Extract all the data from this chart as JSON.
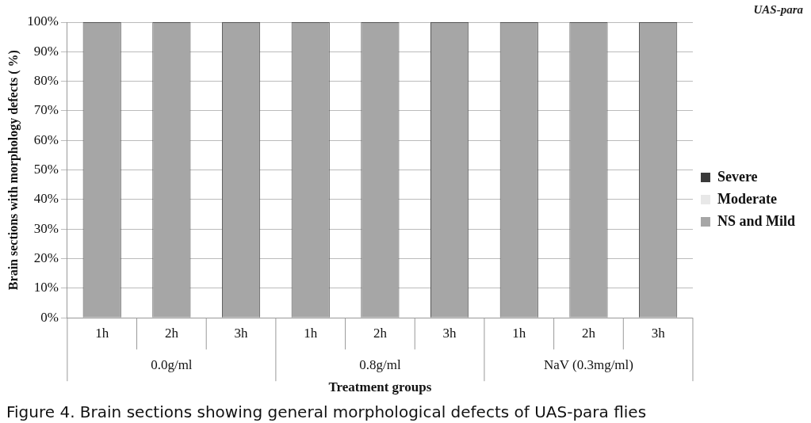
{
  "chart_data": {
    "type": "bar",
    "stacked": true,
    "title": "UAS-para",
    "xlabel": "Treatment groups",
    "ylabel": "Brain sections with morphology defects ( %)",
    "categories": [
      "1h",
      "2h",
      "3h",
      "1h",
      "2h",
      "3h",
      "1h",
      "2h",
      "3h"
    ],
    "series": [
      {
        "name": "Severe",
        "color": "#3a3a3a",
        "values": [
          0,
          0,
          0,
          0,
          0,
          0,
          0,
          0,
          0
        ]
      },
      {
        "name": "Moderate",
        "color": "#e8e8e8",
        "values": [
          0,
          0,
          0,
          0,
          0,
          0,
          0,
          0,
          0
        ]
      },
      {
        "name": "NS and Mild",
        "color": "#a6a6a6",
        "values": [
          100,
          100,
          100,
          100,
          100,
          100,
          100,
          100,
          100
        ]
      }
    ],
    "ylim": [
      0,
      100
    ],
    "yticks": [
      {
        "value": 0,
        "label": "0%"
      },
      {
        "value": 10,
        "label": "10%"
      },
      {
        "value": 20,
        "label": "20%"
      },
      {
        "value": 30,
        "label": "30%"
      },
      {
        "value": 40,
        "label": "40%"
      },
      {
        "value": 50,
        "label": "50%"
      },
      {
        "value": 60,
        "label": "60%"
      },
      {
        "value": 70,
        "label": "70%"
      },
      {
        "value": 80,
        "label": "80%"
      },
      {
        "value": 90,
        "label": "90%"
      },
      {
        "value": 100,
        "label": "100%"
      }
    ],
    "grid": "y",
    "legend": "right",
    "annotations": [
      "0.0g/ml",
      "0.8g/ml",
      "NaV (0.3mg/ml)",
      "Figure 4. Brain sections showing general morphological defects of UAS-para flies"
    ]
  }
}
